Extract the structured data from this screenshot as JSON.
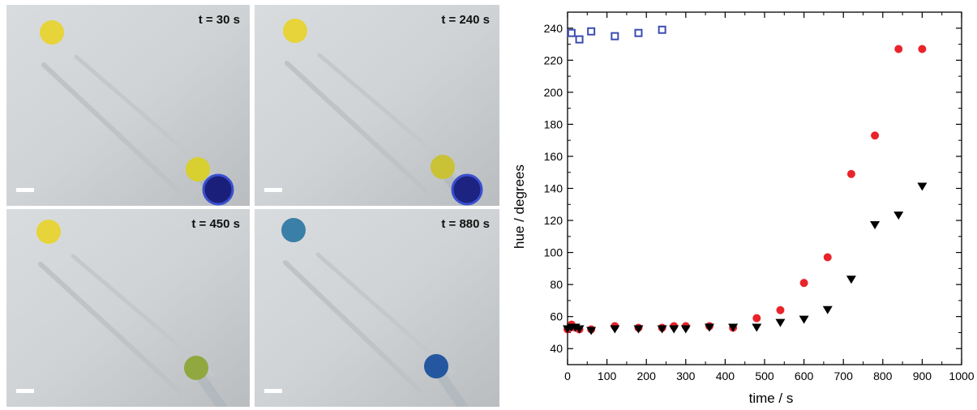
{
  "panels": [
    {
      "label": "t = 30 s",
      "dot_color": "#E6D43A",
      "drop_color": "#D8CF30",
      "probe_color": "#1A1F7A"
    },
    {
      "label": "t = 240 s",
      "dot_color": "#E6D43A",
      "drop_color": "#C9C236",
      "probe_color": "#1C2380"
    },
    {
      "label": "t = 450 s",
      "dot_color": "#E6D43A",
      "drop_color": "#8FA83F",
      "probe_color": null
    },
    {
      "label": "t = 880 s",
      "dot_color": "#3A7FA8",
      "drop_color": "#2457A0",
      "probe_color": null
    }
  ],
  "chart_data": {
    "type": "scatter",
    "xlabel": "time / s",
    "ylabel": "hue / degrees",
    "xlim": [
      0,
      1000
    ],
    "ylim": [
      30,
      250
    ],
    "xticks": [
      0,
      100,
      200,
      300,
      400,
      500,
      600,
      700,
      800,
      900,
      1000
    ],
    "yticks": [
      40,
      60,
      80,
      100,
      120,
      140,
      160,
      180,
      200,
      220,
      240
    ],
    "grid": false,
    "series": [
      {
        "marker": "square-open",
        "color": "#3B4DB0",
        "x": [
          10,
          30,
          60,
          120,
          180,
          240
        ],
        "y": [
          237,
          233,
          238,
          235,
          237,
          239
        ]
      },
      {
        "marker": "circle",
        "color": "#E8242A",
        "x": [
          0,
          10,
          20,
          30,
          60,
          120,
          180,
          240,
          270,
          300,
          360,
          420,
          480,
          540,
          600,
          660,
          720,
          780,
          840,
          900
        ],
        "y": [
          52,
          55,
          53,
          52,
          52,
          54,
          53,
          53,
          54,
          54,
          54,
          53,
          59,
          64,
          81,
          97,
          149,
          173,
          227,
          227
        ]
      },
      {
        "marker": "triangle-down",
        "color": "#000000",
        "x": [
          0,
          10,
          20,
          30,
          60,
          120,
          180,
          240,
          270,
          300,
          360,
          420,
          480,
          540,
          600,
          660,
          720,
          780,
          840,
          900
        ],
        "y": [
          52,
          53,
          53,
          52,
          51,
          52,
          52,
          52,
          52,
          52,
          53,
          53,
          53,
          56,
          58,
          64,
          83,
          117,
          123,
          141
        ]
      }
    ]
  }
}
